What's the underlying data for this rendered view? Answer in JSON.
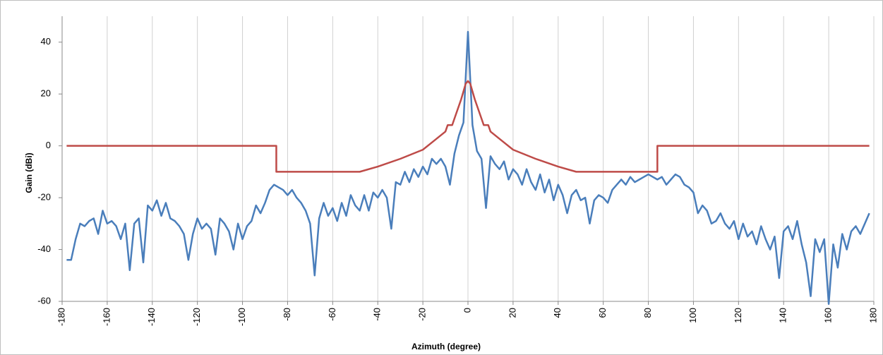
{
  "chart_data": {
    "type": "line",
    "xlabel": "Azimuth (degree)",
    "ylabel": "Gain (dBi)",
    "xlim": [
      -180,
      180
    ],
    "xticks": [
      -180,
      -160,
      -140,
      -120,
      -100,
      -80,
      -60,
      -40,
      -20,
      0,
      20,
      40,
      60,
      80,
      100,
      120,
      140,
      160,
      180
    ],
    "ylim": [
      -60,
      50
    ],
    "yticks": [
      -60,
      -40,
      -20,
      0,
      20,
      40
    ],
    "grid": "x",
    "series": [
      {
        "color": "#4a7ebb",
        "x": [
          -178,
          -176,
          -174,
          -172,
          -170,
          -168,
          -166,
          -164,
          -162,
          -160,
          -158,
          -156,
          -154,
          -152,
          -150,
          -148,
          -146,
          -144,
          -142,
          -140,
          -138,
          -136,
          -134,
          -132,
          -130,
          -128,
          -126,
          -124,
          -122,
          -120,
          -118,
          -116,
          -114,
          -112,
          -110,
          -108,
          -106,
          -104,
          -102,
          -100,
          -98,
          -96,
          -94,
          -92,
          -90,
          -88,
          -86,
          -84,
          -82,
          -80,
          -78,
          -76,
          -74,
          -72,
          -70,
          -68,
          -66,
          -64,
          -62,
          -60,
          -58,
          -56,
          -54,
          -52,
          -50,
          -48,
          -46,
          -44,
          -42,
          -40,
          -38,
          -36,
          -34,
          -32,
          -30,
          -28,
          -26,
          -24,
          -22,
          -20,
          -18,
          -16,
          -14,
          -12,
          -10,
          -8,
          -6,
          -4,
          -2,
          0,
          2,
          4,
          6,
          8,
          10,
          12,
          14,
          16,
          18,
          20,
          22,
          24,
          26,
          28,
          30,
          32,
          34,
          36,
          38,
          40,
          42,
          44,
          46,
          48,
          50,
          52,
          54,
          56,
          58,
          60,
          62,
          64,
          66,
          68,
          70,
          72,
          74,
          76,
          78,
          80,
          82,
          84,
          86,
          88,
          90,
          92,
          94,
          96,
          98,
          100,
          102,
          104,
          106,
          108,
          110,
          112,
          114,
          116,
          118,
          120,
          122,
          124,
          126,
          128,
          130,
          132,
          134,
          136,
          138,
          140,
          142,
          144,
          146,
          148,
          150,
          152,
          154,
          156,
          158,
          160,
          162,
          164,
          166,
          168,
          170,
          172,
          174,
          176,
          178
        ],
        "values": [
          -44,
          -44,
          -36,
          -30,
          -31,
          -29,
          -28,
          -34,
          -25,
          -30,
          -29,
          -31,
          -36,
          -30,
          -48,
          -30,
          -28,
          -45,
          -23,
          -25,
          -21,
          -27,
          -22,
          -28,
          -29,
          -31,
          -34,
          -44,
          -34,
          -28,
          -32,
          -30,
          -32,
          -42,
          -28,
          -30,
          -33,
          -40,
          -30,
          -36,
          -31,
          -29,
          -23,
          -26,
          -22,
          -17,
          -15,
          -16,
          -17,
          -19,
          -17,
          -20,
          -22,
          -25,
          -30,
          -50,
          -28,
          -22,
          -27,
          -24,
          -29,
          -22,
          -27,
          -19,
          -23,
          -25,
          -19,
          -25,
          -18,
          -20,
          -17,
          -20,
          -32,
          -14,
          -15,
          -10,
          -14,
          -9,
          -12,
          -8,
          -11,
          -5,
          -7,
          -5,
          -8,
          -15,
          -3,
          4,
          9,
          44,
          8,
          -2,
          -5,
          -24,
          -4,
          -7,
          -9,
          -6,
          -13,
          -9,
          -11,
          -15,
          -9,
          -14,
          -17,
          -11,
          -18,
          -13,
          -21,
          -15,
          -19,
          -26,
          -19,
          -17,
          -21,
          -20,
          -30,
          -21,
          -19,
          -20,
          -22,
          -17,
          -15,
          -13,
          -15,
          -12,
          -14,
          -13,
          -12,
          -11,
          -12,
          -13,
          -12,
          -15,
          -13,
          -11,
          -12,
          -15,
          -16,
          -18,
          -26,
          -23,
          -25,
          -30,
          -29,
          -26,
          -30,
          -32,
          -29,
          -36,
          -30,
          -35,
          -33,
          -38,
          -31,
          -36,
          -40,
          -35,
          -51,
          -33,
          -31,
          -36,
          -29,
          -38,
          -45,
          -58,
          -36,
          -41,
          -36,
          -61,
          -38,
          -47,
          -34,
          -40,
          -33,
          -31,
          -34,
          -30,
          -26
        ]
      },
      {
        "color": "#be4b48",
        "x": [
          -178,
          -85,
          -85,
          -48,
          -40,
          -30,
          -20,
          -15,
          -10,
          -9,
          -7,
          -5,
          -3,
          -1,
          0,
          1,
          3,
          5,
          7,
          9,
          10,
          15,
          20,
          30,
          40,
          48,
          84,
          84,
          178
        ],
        "values": [
          0,
          0,
          -10,
          -10,
          -8,
          -5,
          -1.5,
          2,
          5.5,
          8,
          8,
          13,
          18,
          24,
          25,
          24,
          18,
          13,
          8,
          8,
          5.5,
          2,
          -1.5,
          -5,
          -8,
          -10,
          -10,
          0,
          0
        ]
      }
    ]
  }
}
